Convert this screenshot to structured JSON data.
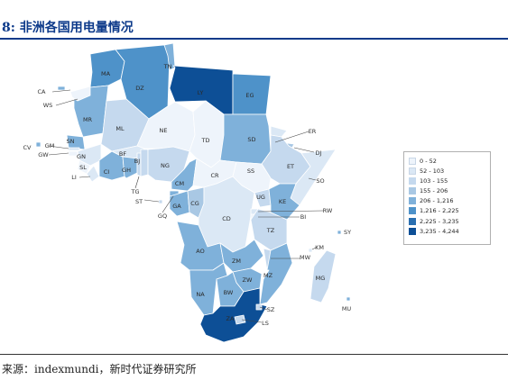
{
  "figure": {
    "title": "8:  非洲各国用电量情况",
    "source": "来源：indexmundi，新时代证券研究所"
  },
  "legend": {
    "bins": [
      {
        "label": "0 - 52",
        "color": "#eef4fb"
      },
      {
        "label": "52 - 103",
        "color": "#dbe8f5"
      },
      {
        "label": "103 - 155",
        "color": "#c5d9ee"
      },
      {
        "label": "155 - 206",
        "color": "#a9c8e4"
      },
      {
        "label": "206 - 1,216",
        "color": "#7fb1da"
      },
      {
        "label": "1,216 - 2,225",
        "color": "#4e92c9"
      },
      {
        "label": "2,225 - 3,235",
        "color": "#2a6fb0"
      },
      {
        "label": "3,235 - 4,244",
        "color": "#0d4f96"
      }
    ]
  },
  "countries": [
    {
      "code": "MA",
      "bin": 5
    },
    {
      "code": "DZ",
      "bin": 5
    },
    {
      "code": "TN",
      "bin": 4
    },
    {
      "code": "LY",
      "bin": 7
    },
    {
      "code": "EG",
      "bin": 5
    },
    {
      "code": "MR",
      "bin": 4
    },
    {
      "code": "ML",
      "bin": 2
    },
    {
      "code": "NE",
      "bin": 0
    },
    {
      "code": "TD",
      "bin": 0
    },
    {
      "code": "SD",
      "bin": 4
    },
    {
      "code": "ER",
      "bin": 1
    },
    {
      "code": "DJ",
      "bin": 3
    },
    {
      "code": "ET",
      "bin": 2
    },
    {
      "code": "SO",
      "bin": 1
    },
    {
      "code": "SN",
      "bin": 4
    },
    {
      "code": "GM",
      "bin": 1
    },
    {
      "code": "GW",
      "bin": 0
    },
    {
      "code": "GN",
      "bin": 1
    },
    {
      "code": "SL",
      "bin": 0
    },
    {
      "code": "LI",
      "bin": 1
    },
    {
      "code": "CI",
      "bin": 4
    },
    {
      "code": "GH",
      "bin": 4
    },
    {
      "code": "BF",
      "bin": 1
    },
    {
      "code": "TG",
      "bin": 2
    },
    {
      "code": "BJ",
      "bin": 2
    },
    {
      "code": "NG",
      "bin": 2
    },
    {
      "code": "CM",
      "bin": 4
    },
    {
      "code": "CR",
      "bin": 0
    },
    {
      "code": "SS",
      "bin": 0
    },
    {
      "code": "GQ",
      "bin": 4
    },
    {
      "code": "GA",
      "bin": 4
    },
    {
      "code": "CG",
      "bin": 3
    },
    {
      "code": "CD",
      "bin": 1
    },
    {
      "code": "UG",
      "bin": 2
    },
    {
      "code": "KE",
      "bin": 4
    },
    {
      "code": "RW",
      "bin": 1
    },
    {
      "code": "BI",
      "bin": 0
    },
    {
      "code": "TZ",
      "bin": 2
    },
    {
      "code": "AO",
      "bin": 4
    },
    {
      "code": "ZM",
      "bin": 4
    },
    {
      "code": "MW",
      "bin": 2
    },
    {
      "code": "MZ",
      "bin": 4
    },
    {
      "code": "ZW",
      "bin": 4
    },
    {
      "code": "NA",
      "bin": 4
    },
    {
      "code": "BW",
      "bin": 4
    },
    {
      "code": "ZA",
      "bin": 7
    },
    {
      "code": "SZ",
      "bin": 2
    },
    {
      "code": "LS",
      "bin": 2
    },
    {
      "code": "MG",
      "bin": 2
    },
    {
      "code": "KM",
      "bin": 1
    },
    {
      "code": "SY",
      "bin": 4
    },
    {
      "code": "MU",
      "bin": 4
    },
    {
      "code": "CA",
      "bin": 4
    },
    {
      "code": "WS",
      "bin": 0
    },
    {
      "code": "CV",
      "bin": 4
    },
    {
      "code": "ST",
      "bin": 2
    }
  ]
}
